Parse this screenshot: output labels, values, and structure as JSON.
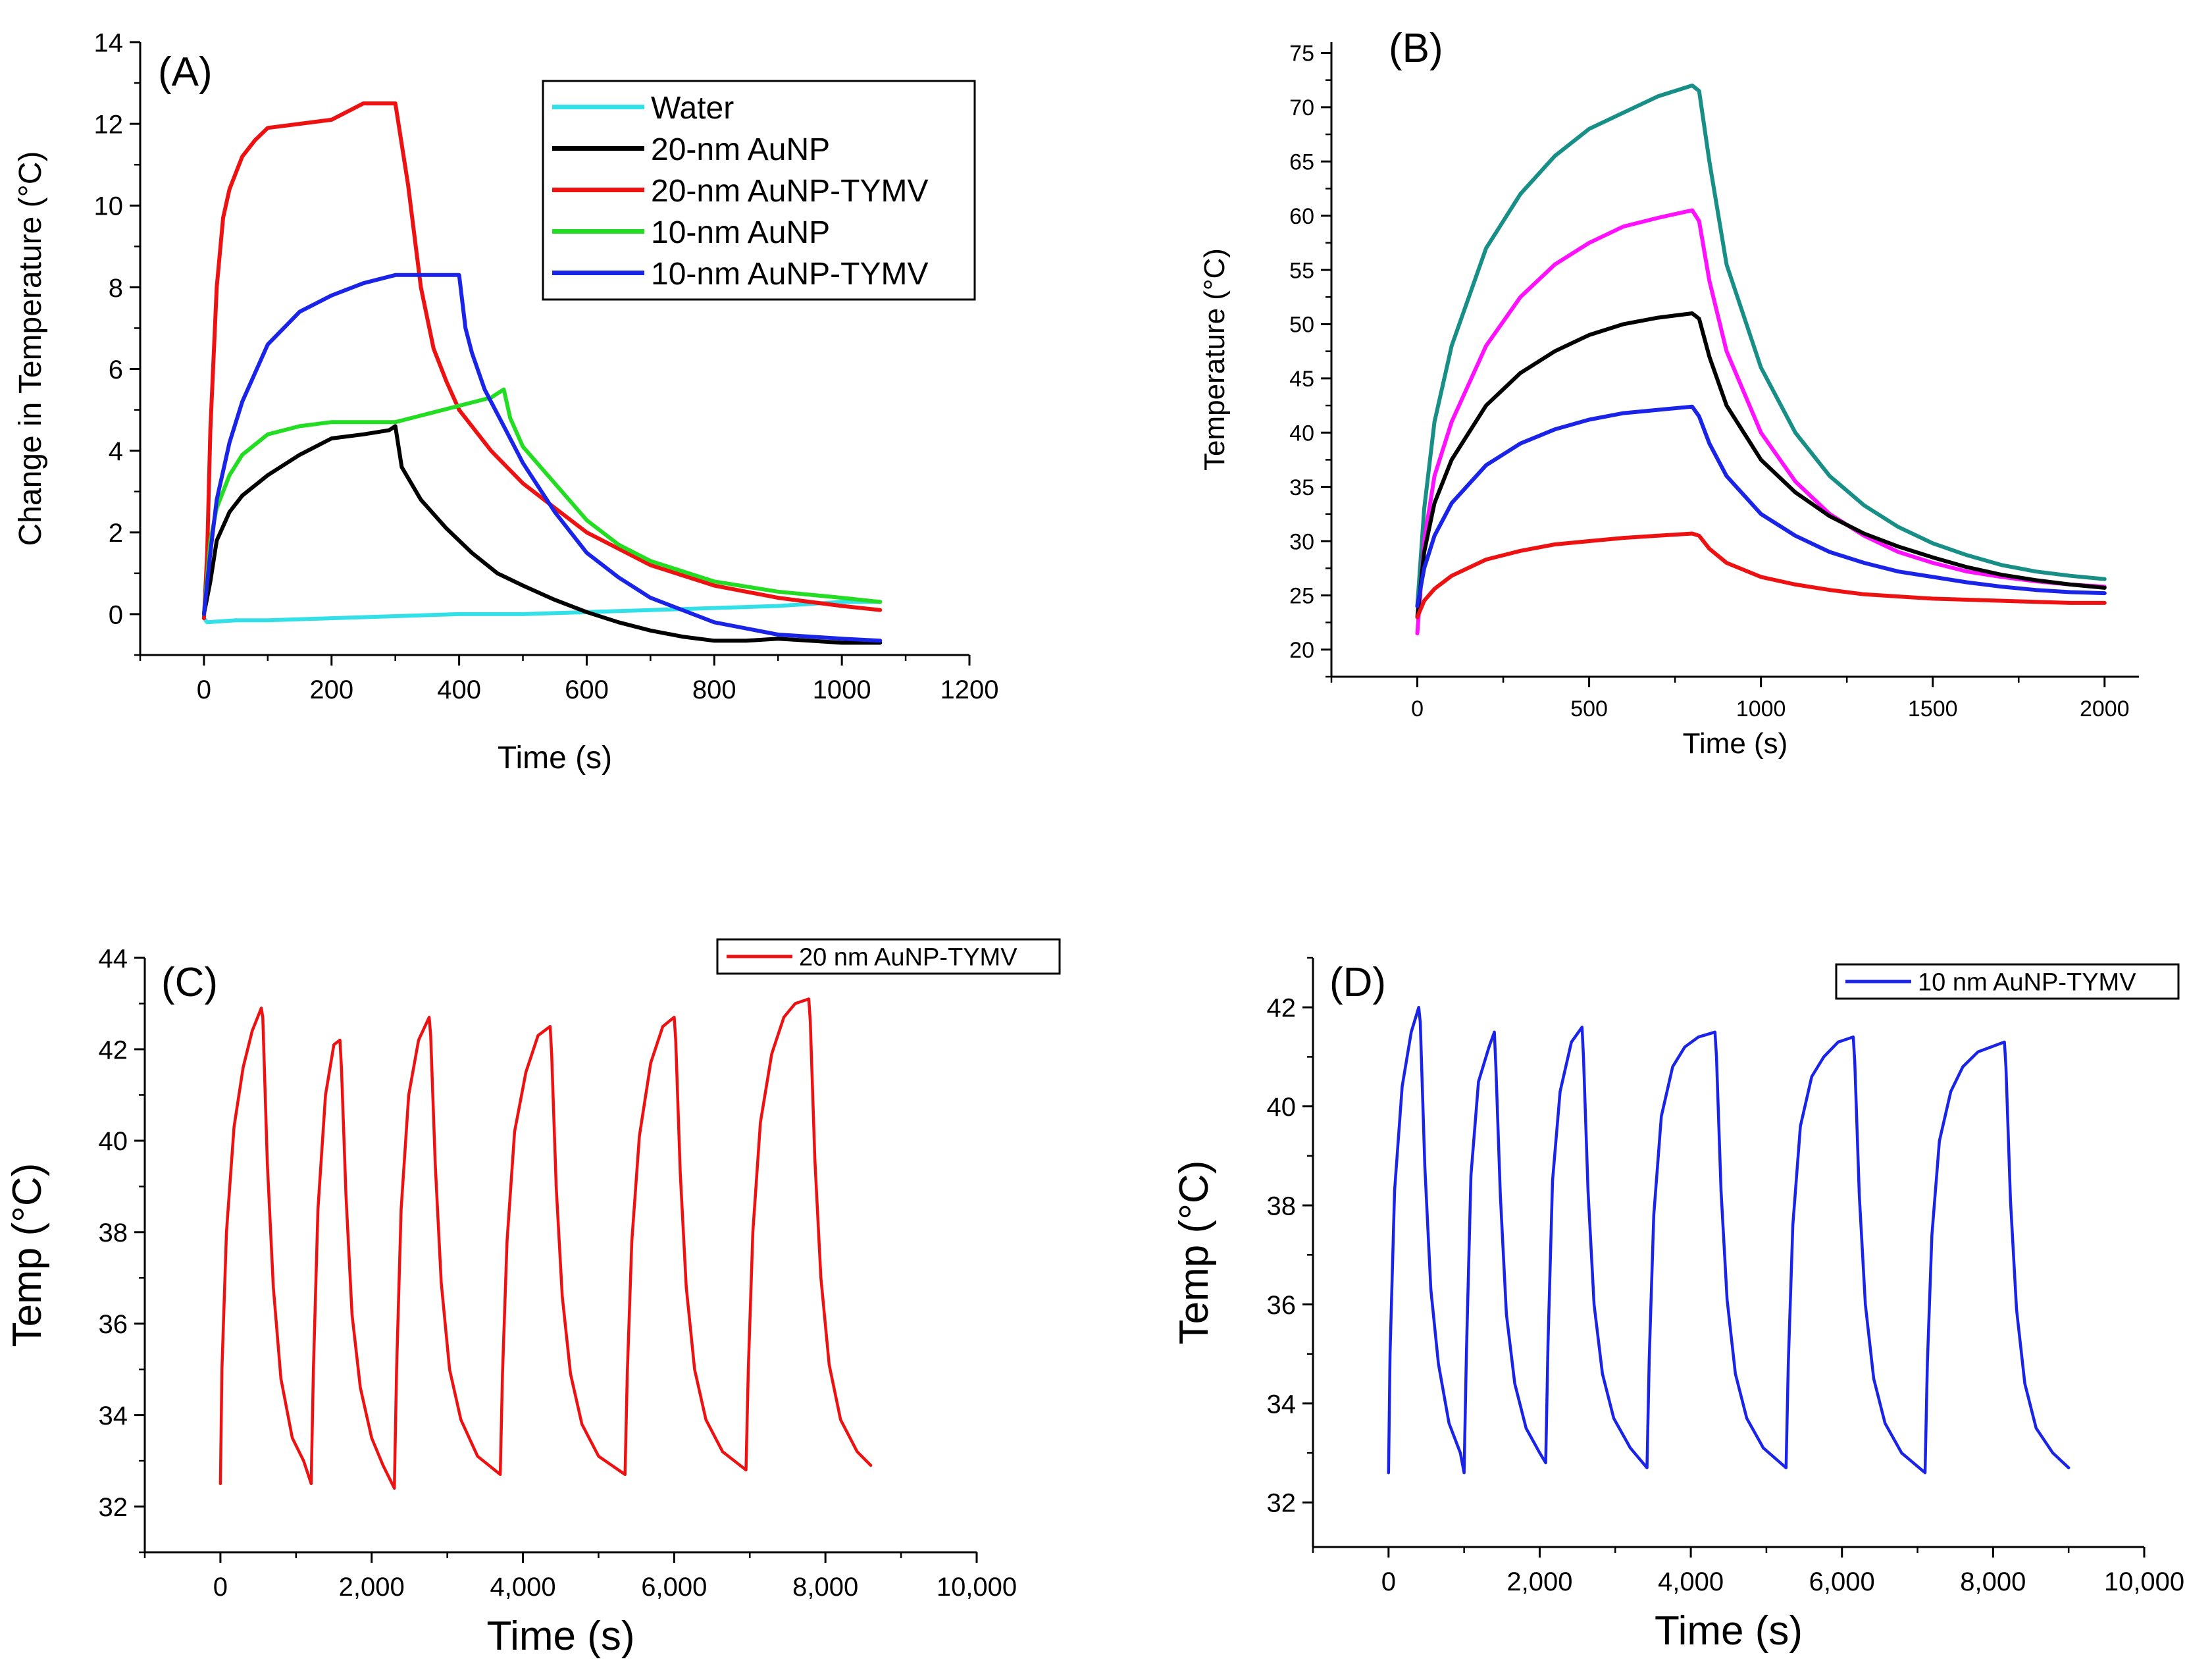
{
  "chart_data": [
    {
      "type": "line",
      "panel_label": "(A)",
      "xlabel": "Time (s)",
      "ylabel": "Change in Temperature (°C)",
      "xlim": [
        -100,
        1200
      ],
      "ylim": [
        -1,
        14
      ],
      "xticks": [
        0,
        200,
        400,
        600,
        800,
        1000,
        1200
      ],
      "xtick_labels": [
        "0",
        "200",
        "400",
        "600",
        "800",
        "1000",
        "1200"
      ],
      "yticks": [
        0,
        2,
        4,
        6,
        8,
        10,
        12,
        14
      ],
      "ytick_labels": [
        "0",
        "2",
        "4",
        "6",
        "8",
        "10",
        "12",
        "14"
      ],
      "legend_position": "top-right",
      "series": [
        {
          "name": "Water",
          "color": "#33e0e8",
          "x": [
            0,
            5,
            50,
            100,
            200,
            300,
            400,
            500,
            600,
            700,
            800,
            900,
            1000,
            1060
          ],
          "y": [
            -0.1,
            -0.2,
            -0.15,
            -0.15,
            -0.1,
            -0.05,
            0,
            0,
            0.05,
            0.1,
            0.15,
            0.2,
            0.3,
            0.3
          ]
        },
        {
          "name": "20-nm AuNP",
          "color": "#000000",
          "x": [
            0,
            10,
            20,
            40,
            60,
            100,
            150,
            200,
            250,
            290,
            300,
            310,
            340,
            380,
            420,
            460,
            500,
            550,
            600,
            650,
            700,
            750,
            800,
            850,
            900,
            950,
            1000,
            1060
          ],
          "y": [
            0,
            0.8,
            1.8,
            2.5,
            2.9,
            3.4,
            3.9,
            4.3,
            4.4,
            4.5,
            4.6,
            3.6,
            2.8,
            2.1,
            1.5,
            1.0,
            0.7,
            0.35,
            0.05,
            -0.2,
            -0.4,
            -0.55,
            -0.65,
            -0.65,
            -0.6,
            -0.65,
            -0.7,
            -0.7
          ]
        },
        {
          "name": "20-nm AuNP-TYMV",
          "color": "#ee1111",
          "x": [
            0,
            5,
            10,
            20,
            30,
            40,
            60,
            80,
            100,
            150,
            200,
            250,
            300,
            320,
            340,
            360,
            380,
            400,
            450,
            500,
            550,
            600,
            650,
            700,
            800,
            900,
            1000,
            1060
          ],
          "y": [
            -0.1,
            1.5,
            4.5,
            8.0,
            9.7,
            10.4,
            11.2,
            11.6,
            11.9,
            12.0,
            12.1,
            12.5,
            12.5,
            10.5,
            8.0,
            6.5,
            5.7,
            5.0,
            4.0,
            3.2,
            2.6,
            2.0,
            1.6,
            1.2,
            0.7,
            0.4,
            0.2,
            0.1
          ]
        },
        {
          "name": "10-nm AuNP",
          "color": "#22dd22",
          "x": [
            0,
            10,
            20,
            40,
            60,
            100,
            150,
            200,
            250,
            300,
            350,
            400,
            450,
            470,
            480,
            500,
            550,
            600,
            650,
            700,
            800,
            900,
            1000,
            1060
          ],
          "y": [
            0,
            1.8,
            2.6,
            3.4,
            3.9,
            4.4,
            4.6,
            4.7,
            4.7,
            4.7,
            4.9,
            5.1,
            5.3,
            5.5,
            4.8,
            4.1,
            3.2,
            2.3,
            1.7,
            1.3,
            0.8,
            0.55,
            0.4,
            0.3
          ]
        },
        {
          "name": "10-nm AuNP-TYMV",
          "color": "#1a24e8",
          "x": [
            0,
            10,
            20,
            40,
            60,
            100,
            150,
            200,
            250,
            300,
            350,
            400,
            410,
            420,
            440,
            470,
            500,
            550,
            600,
            650,
            700,
            800,
            900,
            1000,
            1060
          ],
          "y": [
            0,
            1.5,
            2.8,
            4.2,
            5.2,
            6.6,
            7.4,
            7.8,
            8.1,
            8.3,
            8.3,
            8.3,
            7.0,
            6.4,
            5.5,
            4.6,
            3.7,
            2.5,
            1.5,
            0.9,
            0.4,
            -0.2,
            -0.5,
            -0.6,
            -0.65
          ]
        }
      ]
    },
    {
      "type": "line",
      "panel_label": "(B)",
      "xlabel": "Time (s)",
      "ylabel": "Temperature (°C)",
      "xlim": [
        -250,
        2100
      ],
      "ylim": [
        17.5,
        76
      ],
      "xticks": [
        0,
        500,
        1000,
        1500,
        2000
      ],
      "xtick_labels": [
        "0",
        "500",
        "1000",
        "1500",
        "2000"
      ],
      "yticks": [
        20,
        25,
        30,
        35,
        40,
        45,
        50,
        55,
        60,
        65,
        70,
        75
      ],
      "ytick_labels": [
        "20",
        "25",
        "30",
        "35",
        "40",
        "45",
        "50",
        "55",
        "60",
        "65",
        "70",
        "75"
      ],
      "series": [
        {
          "name": "teal",
          "color": "#178f86",
          "x": [
            0,
            20,
            50,
            100,
            200,
            300,
            400,
            500,
            600,
            700,
            800,
            820,
            850,
            900,
            1000,
            1100,
            1200,
            1300,
            1400,
            1500,
            1600,
            1700,
            1800,
            1900,
            2000
          ],
          "y": [
            24,
            33,
            41,
            48,
            57,
            62,
            65.5,
            68,
            69.5,
            71,
            72,
            71.5,
            65,
            55.5,
            46,
            40,
            36,
            33.3,
            31.3,
            29.8,
            28.7,
            27.8,
            27.2,
            26.8,
            26.5
          ]
        },
        {
          "name": "magenta",
          "color": "#ff10ff",
          "x": [
            0,
            20,
            50,
            100,
            200,
            300,
            400,
            500,
            600,
            700,
            800,
            820,
            850,
            900,
            1000,
            1100,
            1200,
            1300,
            1400,
            1500,
            1600,
            1700,
            1800,
            1900,
            2000
          ],
          "y": [
            21.5,
            30,
            36,
            41,
            48,
            52.5,
            55.5,
            57.5,
            59,
            59.8,
            60.5,
            59.5,
            54,
            47.5,
            40,
            35.5,
            32.5,
            30.5,
            29,
            28,
            27.2,
            26.7,
            26.3,
            26,
            25.8
          ]
        },
        {
          "name": "black",
          "color": "#000000",
          "x": [
            0,
            20,
            50,
            100,
            200,
            300,
            400,
            500,
            600,
            700,
            800,
            820,
            850,
            900,
            1000,
            1100,
            1200,
            1300,
            1400,
            1500,
            1600,
            1700,
            1800,
            1900,
            2000
          ],
          "y": [
            23,
            29,
            33.5,
            37.5,
            42.5,
            45.5,
            47.5,
            49,
            50,
            50.6,
            51,
            50.5,
            47,
            42.5,
            37.5,
            34.5,
            32.3,
            30.7,
            29.5,
            28.5,
            27.6,
            26.9,
            26.4,
            26,
            25.7
          ]
        },
        {
          "name": "blue",
          "color": "#1a24e8",
          "x": [
            0,
            20,
            50,
            100,
            200,
            300,
            400,
            500,
            600,
            700,
            800,
            820,
            850,
            900,
            1000,
            1100,
            1200,
            1300,
            1400,
            1500,
            1600,
            1700,
            1800,
            1900,
            2000
          ],
          "y": [
            24,
            27.5,
            30.5,
            33.5,
            37,
            39,
            40.3,
            41.2,
            41.8,
            42.1,
            42.4,
            41.5,
            39,
            36,
            32.5,
            30.5,
            29,
            28,
            27.2,
            26.7,
            26.2,
            25.8,
            25.5,
            25.3,
            25.2
          ]
        },
        {
          "name": "red",
          "color": "#ee1111",
          "x": [
            0,
            20,
            50,
            100,
            200,
            300,
            400,
            500,
            600,
            700,
            800,
            820,
            850,
            900,
            1000,
            1100,
            1200,
            1300,
            1400,
            1500,
            1600,
            1700,
            1800,
            1900,
            2000
          ],
          "y": [
            23,
            24.5,
            25.6,
            26.8,
            28.3,
            29.1,
            29.7,
            30,
            30.3,
            30.5,
            30.7,
            30.5,
            29.3,
            28,
            26.7,
            26,
            25.5,
            25.1,
            24.9,
            24.7,
            24.6,
            24.5,
            24.4,
            24.3,
            24.3
          ]
        }
      ]
    },
    {
      "type": "line",
      "panel_label": "(C)",
      "xlabel": "Time (s)",
      "ylabel": "Temp (°C)",
      "xlim": [
        -1000,
        10000
      ],
      "ylim": [
        31,
        44
      ],
      "xticks": [
        0,
        2000,
        4000,
        6000,
        8000,
        10000
      ],
      "xtick_labels": [
        "0",
        "2,000",
        "4,000",
        "6,000",
        "8,000",
        "10,000"
      ],
      "yticks": [
        32,
        34,
        36,
        38,
        40,
        42,
        44
      ],
      "ytick_labels": [
        "32",
        "34",
        "36",
        "38",
        "40",
        "42",
        "44"
      ],
      "legend_position": "top-right",
      "series": [
        {
          "name": "20 nm AuNP-TYMV",
          "color": "#ee1111",
          "x": [
            0,
            20,
            80,
            180,
            300,
            420,
            540,
            560,
            620,
            700,
            800,
            950,
            1100,
            1200,
            1230,
            1290,
            1390,
            1500,
            1580,
            1600,
            1660,
            1740,
            1850,
            2000,
            2150,
            2300,
            2330,
            2390,
            2490,
            2620,
            2760,
            2780,
            2840,
            2920,
            3030,
            3180,
            3400,
            3700,
            3730,
            3790,
            3890,
            4040,
            4200,
            4360,
            4380,
            4440,
            4520,
            4630,
            4780,
            5000,
            5350,
            5380,
            5440,
            5540,
            5690,
            5850,
            6000,
            6020,
            6080,
            6160,
            6270,
            6420,
            6640,
            6950,
            6980,
            7040,
            7140,
            7290,
            7450,
            7600,
            7780,
            7800,
            7860,
            7940,
            8050,
            8200,
            8420,
            8600
          ],
          "y": [
            32.5,
            35,
            38,
            40.3,
            41.6,
            42.4,
            42.9,
            42.7,
            39.5,
            36.8,
            34.8,
            33.5,
            33.0,
            32.5,
            35,
            38.5,
            41,
            42.1,
            42.2,
            41.6,
            38.8,
            36.2,
            34.6,
            33.5,
            32.9,
            32.4,
            35,
            38.5,
            41,
            42.2,
            42.7,
            42.3,
            39.5,
            36.9,
            35,
            33.9,
            33.1,
            32.7,
            34.9,
            37.8,
            40.2,
            41.5,
            42.3,
            42.5,
            41.9,
            39,
            36.6,
            34.9,
            33.8,
            33.1,
            32.7,
            34.9,
            37.8,
            40.1,
            41.7,
            42.5,
            42.7,
            42.2,
            39.3,
            36.8,
            35,
            33.9,
            33.2,
            32.8,
            35,
            38,
            40.4,
            41.9,
            42.7,
            43,
            43.1,
            42.6,
            39.6,
            37,
            35.1,
            33.9,
            33.2,
            32.9
          ]
        }
      ]
    },
    {
      "type": "line",
      "panel_label": "(D)",
      "xlabel": "Time (s)",
      "ylabel": "Temp (°C)",
      "xlim": [
        -1000,
        10000
      ],
      "ylim": [
        31.1,
        43
      ],
      "xticks": [
        0,
        2000,
        4000,
        6000,
        8000,
        10000
      ],
      "xtick_labels": [
        "0",
        "2,000",
        "4,000",
        "6,000",
        "8,000",
        "10,000"
      ],
      "yticks": [
        32,
        34,
        36,
        38,
        40,
        42
      ],
      "ytick_labels": [
        "32",
        "34",
        "36",
        "38",
        "40",
        "42"
      ],
      "legend_position": "top-right",
      "series": [
        {
          "name": "10 nm AuNP-TYMV",
          "color": "#1a24e8",
          "x": [
            0,
            20,
            80,
            180,
            300,
            400,
            420,
            480,
            560,
            660,
            800,
            950,
            1000,
            1030,
            1090,
            1190,
            1330,
            1400,
            1420,
            1480,
            1560,
            1670,
            1820,
            2000,
            2080,
            2110,
            2170,
            2270,
            2420,
            2560,
            2580,
            2640,
            2720,
            2830,
            2980,
            3200,
            3420,
            3450,
            3510,
            3610,
            3760,
            3920,
            4100,
            4320,
            4340,
            4400,
            4480,
            4590,
            4740,
            4960,
            5260,
            5290,
            5350,
            5450,
            5600,
            5760,
            5950,
            6150,
            6170,
            6230,
            6310,
            6420,
            6570,
            6790,
            7100,
            7130,
            7190,
            7290,
            7440,
            7600,
            7800,
            8150,
            8170,
            8230,
            8310,
            8420,
            8570,
            8790,
            9000
          ],
          "y": [
            32.6,
            35,
            38.3,
            40.4,
            41.5,
            42.0,
            41.7,
            38.8,
            36.3,
            34.8,
            33.6,
            33.0,
            32.6,
            35,
            38.6,
            40.5,
            41.2,
            41.5,
            40.8,
            38.2,
            35.8,
            34.4,
            33.5,
            33.0,
            32.8,
            35.2,
            38.5,
            40.3,
            41.3,
            41.6,
            41.0,
            38.3,
            36,
            34.6,
            33.7,
            33.1,
            32.7,
            34.9,
            37.8,
            39.8,
            40.8,
            41.2,
            41.4,
            41.5,
            41.0,
            38.3,
            36.1,
            34.6,
            33.7,
            33.1,
            32.7,
            34.8,
            37.6,
            39.6,
            40.6,
            41.0,
            41.3,
            41.4,
            40.9,
            38.2,
            36.0,
            34.5,
            33.6,
            33.0,
            32.6,
            34.8,
            37.4,
            39.3,
            40.3,
            40.8,
            41.1,
            41.3,
            40.8,
            38.1,
            35.9,
            34.4,
            33.5,
            33.0,
            32.7
          ]
        }
      ]
    }
  ]
}
